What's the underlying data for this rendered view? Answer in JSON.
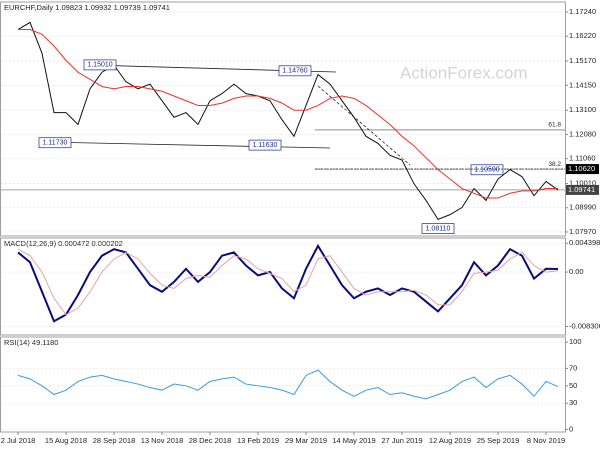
{
  "chart_data": [
    {
      "type": "line",
      "title": "EURCHF,Daily 1.09823 1.09932 1.09739 1.09741",
      "watermark": "ActionForex.com",
      "ylim": [
        1.078,
        1.1766
      ],
      "yticks": [
        {
          "value": 1.1724,
          "label": "1.17240"
        },
        {
          "value": 1.1622,
          "label": "1.16220"
        },
        {
          "value": 1.1517,
          "label": "1.15170"
        },
        {
          "value": 1.1415,
          "label": "1.14150"
        },
        {
          "value": 1.131,
          "label": "1.13100"
        },
        {
          "value": 1.1208,
          "label": "1.12080"
        },
        {
          "value": 1.1106,
          "label": "1.11060"
        },
        {
          "value": 1.1001,
          "label": "1.10010"
        },
        {
          "value": 1.0899,
          "label": "1.08990"
        },
        {
          "value": 1.0797,
          "label": "1.07970"
        }
      ],
      "grid": true,
      "series": [
        {
          "name": "EURCHF",
          "color": "#111111",
          "values": [
            1.165,
            1.168,
            1.155,
            1.13,
            1.13,
            1.125,
            1.14,
            1.147,
            1.15,
            1.143,
            1.14,
            1.142,
            1.135,
            1.128,
            1.13,
            1.125,
            1.135,
            1.138,
            1.142,
            1.138,
            1.137,
            1.135,
            1.127,
            1.12,
            1.133,
            1.146,
            1.142,
            1.135,
            1.128,
            1.12,
            1.117,
            1.112,
            1.11,
            1.1,
            1.093,
            1.085,
            1.087,
            1.09,
            1.098,
            1.093,
            1.102,
            1.106,
            1.103,
            1.095,
            1.101,
            1.0974
          ]
        },
        {
          "name": "MA",
          "color": "#e8312b",
          "values": [
            1.165,
            1.165,
            1.163,
            1.158,
            1.152,
            1.147,
            1.144,
            1.141,
            1.14,
            1.141,
            1.141,
            1.14,
            1.139,
            1.137,
            1.135,
            1.133,
            1.133,
            1.134,
            1.136,
            1.137,
            1.137,
            1.136,
            1.134,
            1.131,
            1.131,
            1.133,
            1.136,
            1.137,
            1.136,
            1.133,
            1.129,
            1.125,
            1.12,
            1.116,
            1.111,
            1.106,
            1.102,
            1.098,
            1.096,
            1.094,
            1.094,
            1.096,
            1.097,
            1.097,
            1.098,
            1.098
          ]
        }
      ],
      "annotations": [
        {
          "value": 1.1501,
          "label": "1.15010"
        },
        {
          "value": 1.1173,
          "label": "1.11730"
        },
        {
          "value": 1.1476,
          "label": "1.14760"
        },
        {
          "value": 1.1163,
          "label": "1.11630"
        },
        {
          "value": 1.1059,
          "label": "1.10590"
        },
        {
          "value": 1.0811,
          "label": "1.08110"
        }
      ],
      "fib_levels": [
        {
          "value": 1.1227,
          "label": "61.8"
        },
        {
          "value": 1.1062,
          "label": "38.2"
        }
      ],
      "markers": [
        {
          "value": 1.1062,
          "label": "1.10620",
          "color": "#000000"
        },
        {
          "value": 1.09741,
          "label": "1.09741",
          "color": "#444444"
        }
      ]
    },
    {
      "type": "line",
      "title": "MACD(12,26,9) 0.000472 0.000202",
      "ylim": [
        -0.0096,
        0.0052
      ],
      "yticks": [
        0.004398,
        {
          "value": 0,
          "label": "0.00"
        },
        -0.008306
      ],
      "series": [
        {
          "name": "MACD",
          "color": "#0a0a80",
          "values": [
            0.003,
            0.0015,
            -0.003,
            -0.0075,
            -0.0065,
            -0.0035,
            0,
            0.0025,
            0.0035,
            0.003,
            0.0005,
            -0.002,
            -0.003,
            -0.0015,
            0.0005,
            -0.0015,
            0,
            0.0025,
            0.003,
            0.001,
            -0.0005,
            0,
            -0.0025,
            -0.004,
            0.0005,
            0.004,
            0.001,
            -0.002,
            -0.004,
            -0.003,
            -0.0025,
            -0.0035,
            -0.0025,
            -0.003,
            -0.0045,
            -0.006,
            -0.004,
            -0.002,
            0.0015,
            -0.0005,
            0.001,
            0.0035,
            0.0025,
            -0.001,
            0.0005,
            0.000472
          ]
        },
        {
          "name": "Signal",
          "color": "#e3a3a3",
          "values": [
            0.0035,
            0.0025,
            0,
            -0.004,
            -0.0065,
            -0.0055,
            -0.003,
            0,
            0.002,
            0.003,
            0.002,
            -0.0002,
            -0.002,
            -0.0025,
            -0.001,
            -0.0005,
            -0.0008,
            0.001,
            0.0025,
            0.002,
            0.0005,
            -0.0002,
            -0.001,
            -0.003,
            -0.002,
            0.002,
            0.0025,
            0,
            -0.0025,
            -0.0035,
            -0.003,
            -0.003,
            -0.003,
            -0.0028,
            -0.0035,
            -0.005,
            -0.005,
            -0.003,
            -0.0002,
            0,
            0.0003,
            0.002,
            0.003,
            0.001,
            0,
            0.000202
          ]
        }
      ]
    },
    {
      "type": "line",
      "title": "RSI(14) 49.1180",
      "ylim": [
        -3,
        106
      ],
      "yticks": [
        100,
        70,
        50,
        30,
        0
      ],
      "categories": [
        "2 Jul 2018",
        null,
        null,
        null,
        "15 Aug 2018",
        null,
        null,
        null,
        "28 Sep 2018",
        null,
        null,
        null,
        "13 Nov 2018",
        null,
        null,
        null,
        "28 Dec 2018",
        null,
        null,
        null,
        "13 Feb 2019",
        null,
        null,
        null,
        "29 Mar 2019",
        null,
        null,
        null,
        "14 May 2019",
        null,
        null,
        null,
        "27 Jun 2019",
        null,
        null,
        null,
        "12 Aug 2019",
        null,
        null,
        null,
        "25 Sep 2019",
        null,
        null,
        null,
        "8 Nov 2019",
        null
      ],
      "series": [
        {
          "name": "RSI",
          "color": "#3b9ddd",
          "values": [
            62,
            58,
            50,
            40,
            45,
            55,
            60,
            62,
            58,
            55,
            52,
            48,
            45,
            52,
            50,
            45,
            55,
            58,
            60,
            52,
            50,
            48,
            45,
            40,
            62,
            68,
            55,
            45,
            38,
            45,
            48,
            40,
            42,
            38,
            35,
            40,
            45,
            55,
            60,
            48,
            58,
            62,
            52,
            38,
            55,
            49.118
          ]
        }
      ]
    }
  ]
}
